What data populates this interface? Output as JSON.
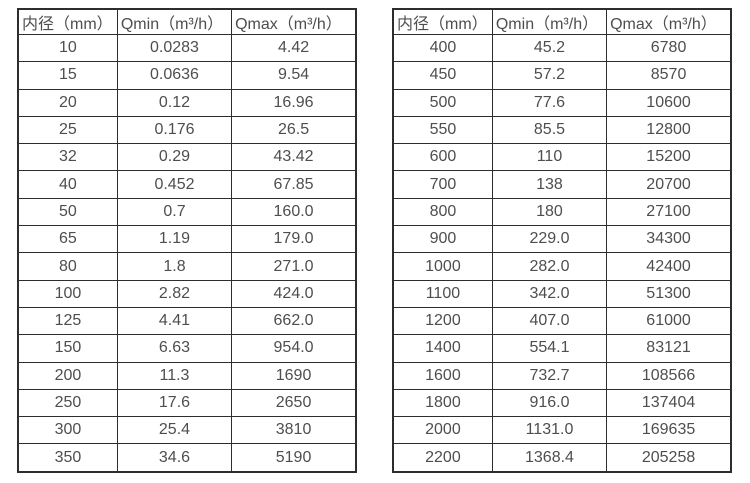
{
  "colors": {
    "background": "#ffffff",
    "border": "#2d2d2d",
    "text": "#4e4e4e"
  },
  "tables": [
    {
      "name": "flow-table-dn10-350",
      "headers": [
        "内径（mm）",
        "Qmin（m³/h）",
        "Qmax（m³/h）"
      ],
      "rows": [
        [
          "10",
          "0.0283",
          "4.42"
        ],
        [
          "15",
          "0.0636",
          "9.54"
        ],
        [
          "20",
          "0.12",
          "16.96"
        ],
        [
          "25",
          "0.176",
          "26.5"
        ],
        [
          "32",
          "0.29",
          "43.42"
        ],
        [
          "40",
          "0.452",
          "67.85"
        ],
        [
          "50",
          "0.7",
          "160.0"
        ],
        [
          "65",
          "1.19",
          "179.0"
        ],
        [
          "80",
          "1.8",
          "271.0"
        ],
        [
          "100",
          "2.82",
          "424.0"
        ],
        [
          "125",
          "4.41",
          "662.0"
        ],
        [
          "150",
          "6.63",
          "954.0"
        ],
        [
          "200",
          "11.3",
          "1690"
        ],
        [
          "250",
          "17.6",
          "2650"
        ],
        [
          "300",
          "25.4",
          "3810"
        ],
        [
          "350",
          "34.6",
          "5190"
        ]
      ]
    },
    {
      "name": "flow-table-dn400-2200",
      "headers": [
        "内径（mm）",
        "Qmin（m³/h）",
        "Qmax（m³/h）"
      ],
      "rows": [
        [
          "400",
          "45.2",
          "6780"
        ],
        [
          "450",
          "57.2",
          "8570"
        ],
        [
          "500",
          "77.6",
          "10600"
        ],
        [
          "550",
          "85.5",
          "12800"
        ],
        [
          "600",
          "110",
          "15200"
        ],
        [
          "700",
          "138",
          "20700"
        ],
        [
          "800",
          "180",
          "27100"
        ],
        [
          "900",
          "229.0",
          "34300"
        ],
        [
          "1000",
          "282.0",
          "42400"
        ],
        [
          "1100",
          "342.0",
          "51300"
        ],
        [
          "1200",
          "407.0",
          "61000"
        ],
        [
          "1400",
          "554.1",
          "83121"
        ],
        [
          "1600",
          "732.7",
          "108566"
        ],
        [
          "1800",
          "916.0",
          "137404"
        ],
        [
          "2000",
          "1131.0",
          "169635"
        ],
        [
          "2200",
          "1368.4",
          "205258"
        ]
      ]
    }
  ]
}
